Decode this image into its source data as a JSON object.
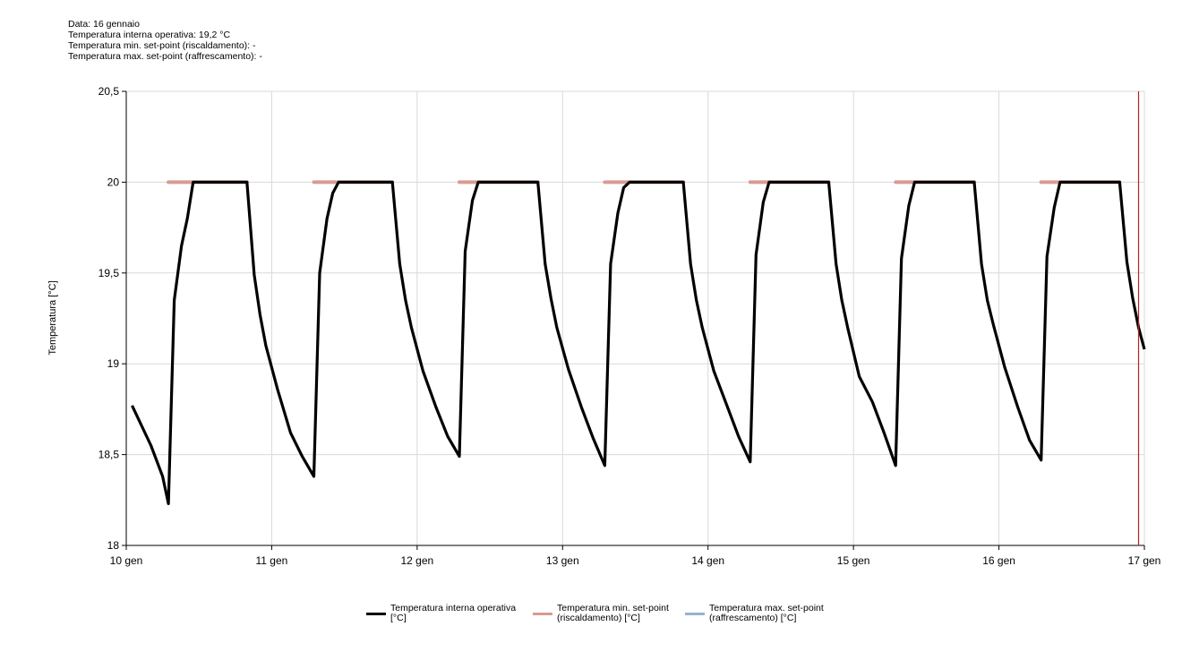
{
  "info": {
    "date_line": "Data: 16 gennaio",
    "temp_line": "Temperatura interna operativa: 19,2 °C",
    "min_setpoint_line": "Temperatura min. set-point (riscaldamento): -",
    "max_setpoint_line": "Temperatura max. set-point (raffrescamento): -"
  },
  "chart_data": {
    "type": "line",
    "title": "",
    "xlabel": "",
    "ylabel": "Temperatura [°C]",
    "xlim": [
      10,
      17
    ],
    "ylim": [
      18,
      20.5
    ],
    "x_ticks": [
      10,
      11,
      12,
      13,
      14,
      15,
      16,
      17
    ],
    "x_tick_labels": [
      "10 gen",
      "11 gen",
      "12 gen",
      "13 gen",
      "14 gen",
      "15 gen",
      "16 gen",
      "17 gen"
    ],
    "y_ticks": [
      18,
      18.5,
      19,
      19.5,
      20,
      20.5
    ],
    "y_tick_labels": [
      "18",
      "18,5",
      "19",
      "19,5",
      "20",
      "20,5"
    ],
    "grid": true,
    "legend_position": "bottom",
    "marker_x": 16.96,
    "marker_color": "#b22222",
    "series": [
      {
        "name": "Temperatura interna operativa [°C]",
        "color": "#000000",
        "points": [
          [
            10.04,
            18.77
          ],
          [
            10.17,
            18.55
          ],
          [
            10.25,
            18.38
          ],
          [
            10.29,
            18.23
          ],
          [
            10.33,
            19.35
          ],
          [
            10.38,
            19.65
          ],
          [
            10.42,
            19.8
          ],
          [
            10.46,
            20.0
          ],
          [
            10.83,
            20.0
          ],
          [
            10.88,
            19.49
          ],
          [
            10.92,
            19.27
          ],
          [
            10.96,
            19.1
          ],
          [
            11.04,
            18.86
          ],
          [
            11.13,
            18.62
          ],
          [
            11.21,
            18.49
          ],
          [
            11.29,
            18.38
          ],
          [
            11.33,
            19.5
          ],
          [
            11.38,
            19.8
          ],
          [
            11.42,
            19.94
          ],
          [
            11.46,
            20.0
          ],
          [
            11.83,
            20.0
          ],
          [
            11.88,
            19.55
          ],
          [
            11.92,
            19.35
          ],
          [
            11.96,
            19.2
          ],
          [
            12.04,
            18.96
          ],
          [
            12.13,
            18.76
          ],
          [
            12.21,
            18.6
          ],
          [
            12.29,
            18.49
          ],
          [
            12.33,
            19.62
          ],
          [
            12.38,
            19.9
          ],
          [
            12.42,
            20.0
          ],
          [
            12.83,
            20.0
          ],
          [
            12.88,
            19.55
          ],
          [
            12.92,
            19.36
          ],
          [
            12.96,
            19.2
          ],
          [
            13.04,
            18.97
          ],
          [
            13.13,
            18.76
          ],
          [
            13.21,
            18.59
          ],
          [
            13.29,
            18.44
          ],
          [
            13.33,
            19.55
          ],
          [
            13.38,
            19.83
          ],
          [
            13.42,
            19.97
          ],
          [
            13.46,
            20.0
          ],
          [
            13.83,
            20.0
          ],
          [
            13.88,
            19.55
          ],
          [
            13.92,
            19.35
          ],
          [
            13.96,
            19.2
          ],
          [
            14.04,
            18.96
          ],
          [
            14.13,
            18.77
          ],
          [
            14.21,
            18.6
          ],
          [
            14.29,
            18.46
          ],
          [
            14.33,
            19.6
          ],
          [
            14.38,
            19.89
          ],
          [
            14.42,
            20.0
          ],
          [
            14.83,
            20.0
          ],
          [
            14.88,
            19.55
          ],
          [
            14.92,
            19.35
          ],
          [
            14.96,
            19.2
          ],
          [
            15.04,
            18.93
          ],
          [
            15.13,
            18.79
          ],
          [
            15.21,
            18.62
          ],
          [
            15.29,
            18.44
          ],
          [
            15.33,
            19.58
          ],
          [
            15.38,
            19.87
          ],
          [
            15.42,
            20.0
          ],
          [
            15.83,
            20.0
          ],
          [
            15.88,
            19.55
          ],
          [
            15.92,
            19.35
          ],
          [
            15.96,
            19.22
          ],
          [
            16.04,
            18.98
          ],
          [
            16.13,
            18.76
          ],
          [
            16.21,
            18.58
          ],
          [
            16.29,
            18.47
          ],
          [
            16.33,
            19.59
          ],
          [
            16.38,
            19.86
          ],
          [
            16.42,
            20.0
          ],
          [
            16.83,
            20.0
          ],
          [
            16.88,
            19.56
          ],
          [
            16.92,
            19.36
          ],
          [
            16.96,
            19.2
          ],
          [
            17.0,
            19.08
          ]
        ]
      },
      {
        "name": "Temperatura min. set-point (riscaldamento) [°C]",
        "color": "#d99a94",
        "segments": [
          [
            10.29,
            10.83
          ],
          [
            11.29,
            11.83
          ],
          [
            12.29,
            12.83
          ],
          [
            13.29,
            13.83
          ],
          [
            14.29,
            14.83
          ],
          [
            15.29,
            15.83
          ],
          [
            16.29,
            16.83
          ]
        ],
        "value": 20
      },
      {
        "name": "Temperatura max. set-point (raffrescamento) [°C]",
        "color": "#93b3d2",
        "segments": []
      }
    ]
  },
  "legend": {
    "items": [
      {
        "line1": "Temperatura interna operativa",
        "line2": "[°C]",
        "color": "#000000"
      },
      {
        "line1": "Temperatura min. set-point",
        "line2": "(riscaldamento) [°C]",
        "color": "#d99a94"
      },
      {
        "line1": "Temperatura max. set-point",
        "line2": "(raffrescamento) [°C]",
        "color": "#93b3d2"
      }
    ]
  }
}
